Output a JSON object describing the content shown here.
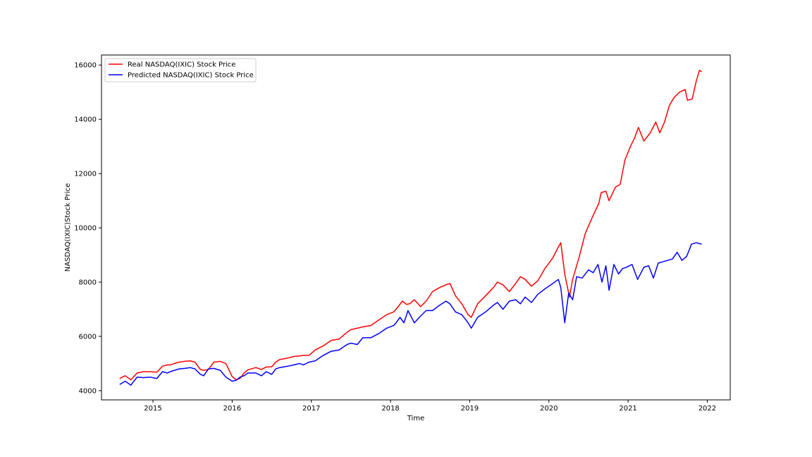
{
  "chart_data": {
    "type": "line",
    "title": "",
    "xlabel": "Time",
    "ylabel": "NASDAQ(IXIC)Stock Price",
    "xlim": [
      2014.35,
      2022.29
    ],
    "ylim": [
      3660,
      16370
    ],
    "x_ticks": [
      2015,
      2016,
      2017,
      2018,
      2019,
      2020,
      2021,
      2022
    ],
    "x_tick_labels": [
      "2015",
      "2016",
      "2017",
      "2018",
      "2019",
      "2020",
      "2021",
      "2022"
    ],
    "y_ticks": [
      4000,
      6000,
      8000,
      10000,
      12000,
      14000,
      16000
    ],
    "y_tick_labels": [
      "4000",
      "6000",
      "8000",
      "10000",
      "12000",
      "14000",
      "16000"
    ],
    "grid": false,
    "legend": "top-left",
    "series": [
      {
        "name": "Real NASDAQ(IXIC) Stock Price",
        "color": "#ff0000",
        "x": [
          2014.58,
          2014.65,
          2014.72,
          2014.8,
          2014.88,
          2014.96,
          2015.05,
          2015.12,
          2015.18,
          2015.22,
          2015.27,
          2015.33,
          2015.4,
          2015.47,
          2015.53,
          2015.6,
          2015.64,
          2015.7,
          2015.77,
          2015.85,
          2015.92,
          2016.0,
          2016.05,
          2016.1,
          2016.15,
          2016.2,
          2016.3,
          2016.37,
          2016.43,
          2016.5,
          2016.55,
          2016.6,
          2016.7,
          2016.78,
          2016.85,
          2016.9,
          2016.97,
          2017.05,
          2017.15,
          2017.25,
          2017.35,
          2017.45,
          2017.5,
          2017.58,
          2017.65,
          2017.75,
          2017.85,
          2017.95,
          2018.04,
          2018.07,
          2018.15,
          2018.2,
          2018.24,
          2018.3,
          2018.38,
          2018.45,
          2018.53,
          2018.62,
          2018.7,
          2018.75,
          2018.82,
          2018.9,
          2018.98,
          2019.02,
          2019.1,
          2019.2,
          2019.3,
          2019.35,
          2019.42,
          2019.5,
          2019.58,
          2019.64,
          2019.7,
          2019.78,
          2019.86,
          2019.95,
          2020.05,
          2020.12,
          2020.15,
          2020.2,
          2020.26,
          2020.3,
          2020.38,
          2020.46,
          2020.55,
          2020.63,
          2020.66,
          2020.72,
          2020.76,
          2020.84,
          2020.9,
          2020.96,
          2021.03,
          2021.08,
          2021.13,
          2021.2,
          2021.28,
          2021.35,
          2021.4,
          2021.46,
          2021.52,
          2021.58,
          2021.65,
          2021.72,
          2021.75,
          2021.81,
          2021.86,
          2021.9,
          2021.93
        ],
        "values": [
          4450,
          4550,
          4400,
          4650,
          4700,
          4700,
          4680,
          4900,
          4950,
          4950,
          5000,
          5050,
          5080,
          5100,
          5050,
          4780,
          4750,
          4780,
          5050,
          5080,
          5000,
          4520,
          4400,
          4450,
          4650,
          4770,
          4850,
          4780,
          4870,
          4880,
          5050,
          5150,
          5200,
          5260,
          5280,
          5300,
          5300,
          5500,
          5650,
          5850,
          5900,
          6150,
          6250,
          6300,
          6350,
          6400,
          6600,
          6800,
          6900,
          7000,
          7300,
          7180,
          7200,
          7350,
          7100,
          7300,
          7650,
          7800,
          7900,
          7950,
          7500,
          7200,
          6800,
          6700,
          7200,
          7500,
          7800,
          8000,
          7900,
          7650,
          7950,
          8200,
          8100,
          7850,
          8050,
          8500,
          8900,
          9300,
          9450,
          8300,
          7450,
          8100,
          8900,
          9800,
          10400,
          10900,
          11300,
          11350,
          11000,
          11500,
          11600,
          12500,
          13000,
          13300,
          13700,
          13200,
          13500,
          13900,
          13500,
          13900,
          14500,
          14800,
          15000,
          15100,
          14700,
          14750,
          15400,
          15800,
          15750
        ]
      },
      {
        "name": "Predicted NASDAQ(IXIC) Stock Price",
        "color": "#0000ff",
        "x": [
          2014.58,
          2014.65,
          2014.72,
          2014.8,
          2014.88,
          2014.96,
          2015.05,
          2015.12,
          2015.18,
          2015.22,
          2015.27,
          2015.33,
          2015.4,
          2015.47,
          2015.53,
          2015.6,
          2015.64,
          2015.7,
          2015.77,
          2015.85,
          2015.92,
          2016.0,
          2016.05,
          2016.1,
          2016.15,
          2016.2,
          2016.3,
          2016.37,
          2016.43,
          2016.5,
          2016.55,
          2016.6,
          2016.7,
          2016.78,
          2016.85,
          2016.9,
          2016.97,
          2017.05,
          2017.15,
          2017.25,
          2017.35,
          2017.45,
          2017.5,
          2017.58,
          2017.65,
          2017.75,
          2017.85,
          2017.95,
          2018.04,
          2018.07,
          2018.12,
          2018.17,
          2018.22,
          2018.3,
          2018.38,
          2018.45,
          2018.53,
          2018.62,
          2018.7,
          2018.75,
          2018.82,
          2018.9,
          2018.98,
          2019.02,
          2019.1,
          2019.2,
          2019.3,
          2019.35,
          2019.42,
          2019.5,
          2019.58,
          2019.64,
          2019.7,
          2019.78,
          2019.86,
          2019.95,
          2020.05,
          2020.12,
          2020.15,
          2020.2,
          2020.25,
          2020.3,
          2020.35,
          2020.42,
          2020.5,
          2020.56,
          2020.62,
          2020.67,
          2020.72,
          2020.76,
          2020.82,
          2020.88,
          2020.93,
          2020.98,
          2021.05,
          2021.12,
          2021.2,
          2021.26,
          2021.32,
          2021.38,
          2021.44,
          2021.5,
          2021.56,
          2021.62,
          2021.68,
          2021.74,
          2021.8,
          2021.86,
          2021.9,
          2021.93
        ],
        "values": [
          4230,
          4350,
          4200,
          4500,
          4480,
          4500,
          4450,
          4700,
          4650,
          4700,
          4750,
          4800,
          4820,
          4850,
          4800,
          4600,
          4550,
          4800,
          4820,
          4750,
          4500,
          4350,
          4380,
          4500,
          4550,
          4650,
          4650,
          4550,
          4700,
          4600,
          4800,
          4850,
          4900,
          4950,
          5000,
          4950,
          5050,
          5100,
          5300,
          5450,
          5500,
          5700,
          5750,
          5700,
          5950,
          5950,
          6100,
          6300,
          6400,
          6500,
          6700,
          6500,
          6950,
          6500,
          6750,
          6950,
          6950,
          7150,
          7300,
          7200,
          6900,
          6800,
          6500,
          6300,
          6700,
          6900,
          7150,
          7250,
          7000,
          7300,
          7350,
          7200,
          7450,
          7250,
          7550,
          7750,
          7950,
          8100,
          7800,
          6500,
          7600,
          7350,
          8200,
          8150,
          8450,
          8350,
          8650,
          8000,
          8600,
          7700,
          8650,
          8300,
          8500,
          8550,
          8650,
          8100,
          8550,
          8600,
          8150,
          8700,
          8750,
          8800,
          8850,
          9100,
          8800,
          8950,
          9400,
          9450,
          9420,
          9400
        ]
      }
    ]
  }
}
